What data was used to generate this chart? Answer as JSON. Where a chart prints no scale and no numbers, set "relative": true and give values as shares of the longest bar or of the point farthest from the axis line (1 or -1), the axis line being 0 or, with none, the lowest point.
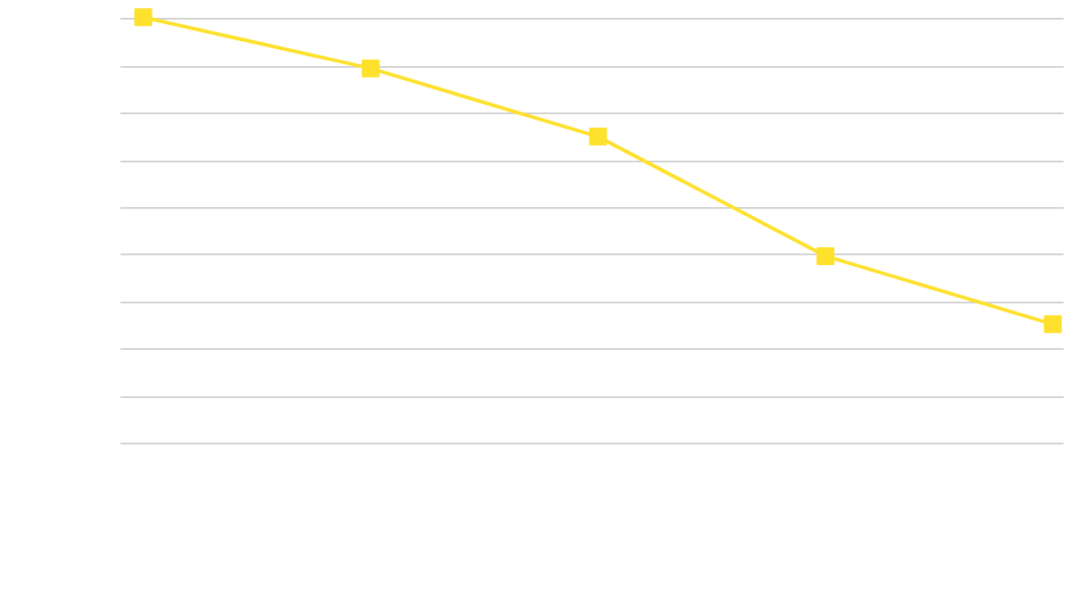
{
  "chart_data": {
    "type": "line",
    "relative": true,
    "categories": [
      null,
      null,
      null,
      null,
      null
    ],
    "series": [
      {
        "color": "#fde12d",
        "values": [
          1,
          0.88,
          0.72,
          0.44,
          0.28
        ]
      }
    ],
    "marker": "square",
    "line_style": "solid",
    "grid": "y",
    "tick_labels": false
  }
}
